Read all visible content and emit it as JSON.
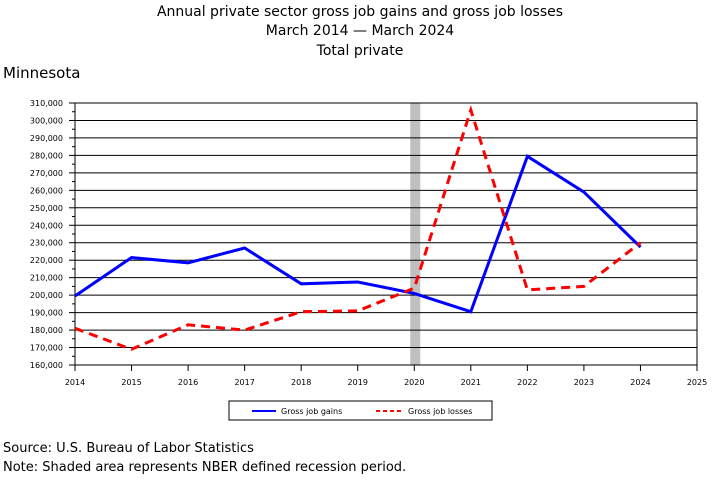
{
  "title": {
    "line1": "Annual private sector gross job gains and gross job losses",
    "line2": "March 2014 — March 2024",
    "line3": "Total private"
  },
  "region": "Minnesota",
  "footer": {
    "source": "Source: U.S. Bureau of Labor Statistics",
    "note": "Note: Shaded area represents NBER defined recession period."
  },
  "chart_data": {
    "type": "line",
    "title": "Annual private sector gross job gains and gross job losses",
    "xlabel": "",
    "ylabel": "",
    "xlim": [
      2014,
      2025
    ],
    "ylim": [
      160000,
      310000
    ],
    "x_ticks": [
      2014,
      2015,
      2016,
      2017,
      2018,
      2019,
      2020,
      2021,
      2022,
      2023,
      2024,
      2025
    ],
    "y_ticks": [
      160000,
      170000,
      180000,
      190000,
      200000,
      210000,
      220000,
      230000,
      240000,
      250000,
      260000,
      270000,
      280000,
      290000,
      300000,
      310000
    ],
    "y_tick_labels": [
      "160,000",
      "170,000",
      "180,000",
      "190,000",
      "200,000",
      "210,000",
      "220,000",
      "230,000",
      "240,000",
      "250,000",
      "260,000",
      "270,000",
      "280,000",
      "290,000",
      "300,000",
      "310,000"
    ],
    "recession": [
      2020.0,
      2020.17
    ],
    "grid": "horizontal",
    "legend_position": "bottom",
    "series": [
      {
        "name": "Gross job gains",
        "color": "#0000ff",
        "style": "solid",
        "x": [
          2014,
          2015,
          2016,
          2017,
          2018,
          2019,
          2020,
          2021,
          2022,
          2023,
          2024
        ],
        "values": [
          199500,
          221500,
          218500,
          227000,
          206500,
          207500,
          201000,
          190500,
          279500,
          259000,
          227500
        ]
      },
      {
        "name": "Gross job losses",
        "color": "#ff0000",
        "style": "dashed",
        "x": [
          2014,
          2015,
          2016,
          2017,
          2018,
          2019,
          2020,
          2021,
          2022,
          2023,
          2024
        ],
        "values": [
          181000,
          169000,
          183000,
          180000,
          190500,
          191000,
          204000,
          306000,
          203000,
          205000,
          230000
        ]
      }
    ]
  }
}
